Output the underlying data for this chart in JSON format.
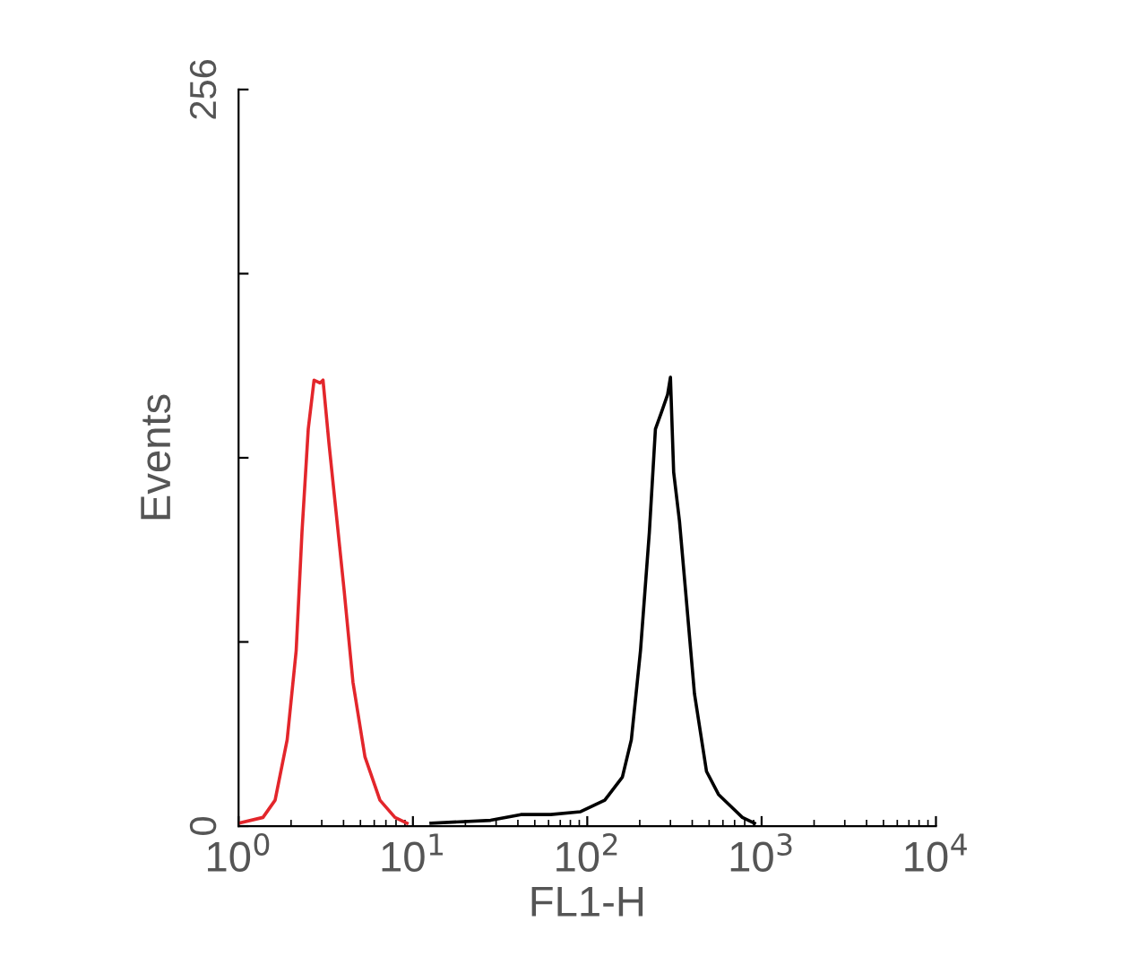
{
  "chart_data": {
    "type": "line",
    "xlabel": "FL1-H",
    "ylabel": "Events",
    "log": "x",
    "xlim": [
      1,
      10000
    ],
    "xticks": [
      {
        "value": 1,
        "label": "10$^{0}$"
      },
      {
        "value": 10,
        "label": "10$^{1}$"
      },
      {
        "value": 100,
        "label": "10$^{2}$"
      },
      {
        "value": 1000,
        "label": "10$^{3}$"
      },
      {
        "value": 10000,
        "label": "10$^{4}$"
      }
    ],
    "ylim": [
      0,
      256
    ],
    "yticks": [
      0,
      {
        "value": 64,
        "label": null
      },
      {
        "value": 128,
        "label": null
      },
      {
        "value": 192,
        "label": null
      },
      256
    ],
    "grid": false,
    "legend": false,
    "marker": "none",
    "line_style": "solid",
    "series": [
      {
        "color": "#e3262b",
        "x": [
          1,
          1.38,
          1.62,
          1.9,
          2.14,
          2.31,
          2.51,
          2.71,
          2.93,
          3.05,
          3.3,
          3.57,
          4.03,
          4.53,
          5.31,
          6.47,
          7.89,
          9.25
        ],
        "values": [
          1,
          3,
          9,
          30,
          61,
          102,
          138,
          155,
          154,
          155,
          133,
          113,
          82,
          50,
          24,
          9,
          3,
          1
        ]
      },
      {
        "color": "#000000",
        "x": [
          12.7,
          27.9,
          41.6,
          61.7,
          91.6,
          126,
          159,
          179,
          202,
          227,
          246,
          267,
          289,
          300,
          313,
          338,
          366,
          412,
          483,
          566,
          662,
          776,
          910
        ],
        "values": [
          1,
          2,
          4,
          4,
          5,
          9,
          17,
          30,
          61,
          102,
          138,
          144,
          150,
          156,
          123,
          106,
          82,
          46,
          19,
          11,
          7,
          3,
          1
        ]
      }
    ]
  }
}
